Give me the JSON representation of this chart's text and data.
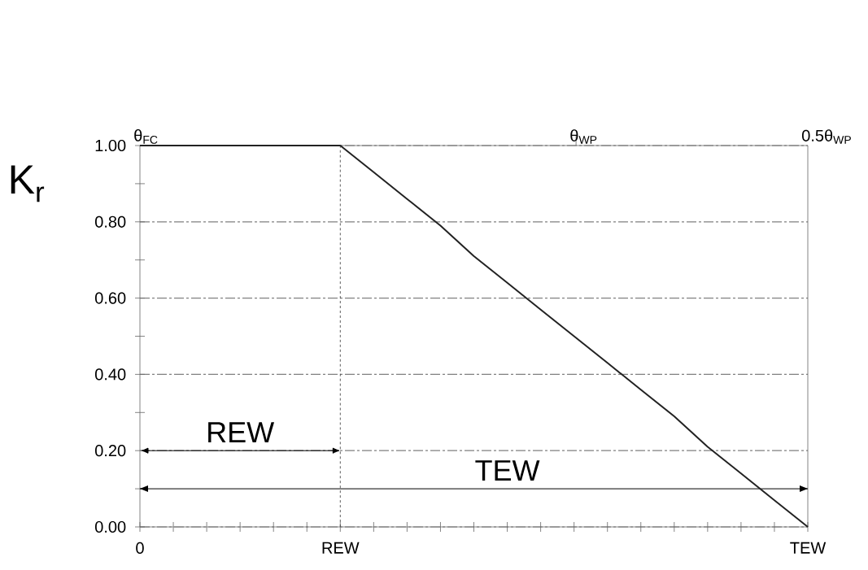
{
  "chart_data": {
    "type": "line",
    "ylabel": "K$_{r}$",
    "categories": [
      "0",
      null,
      null,
      null,
      null,
      null,
      "REW",
      null,
      null,
      null,
      null,
      null,
      null,
      null,
      null,
      null,
      null,
      null,
      null,
      null,
      "TEW"
    ],
    "series": [
      {
        "color": "#222222",
        "values": [
          1,
          1,
          1,
          1,
          1,
          1,
          1,
          0.93,
          0.86,
          0.79,
          0.71,
          0.64,
          0.57,
          0.5,
          0.43,
          0.36,
          0.29,
          0.21,
          0.14,
          0.07,
          0
        ]
      }
    ],
    "ylim": [
      0,
      1
    ],
    "yticks": [
      {
        "value": 0,
        "label": "0.00"
      },
      {
        "value": 0.1,
        "label": null
      },
      {
        "value": 0.2,
        "label": "0.20"
      },
      {
        "value": 0.3,
        "label": null
      },
      {
        "value": 0.4,
        "label": "0.40"
      },
      {
        "value": 0.5,
        "label": null
      },
      {
        "value": 0.6,
        "label": "0.60"
      },
      {
        "value": 0.7,
        "label": null
      },
      {
        "value": 0.8,
        "label": "0.80"
      },
      {
        "value": 0.9,
        "label": null
      },
      {
        "value": 1,
        "label": "1.00"
      }
    ],
    "ref_lines": [
      {
        "axis": "x",
        "value": "REW",
        "color": "#333333",
        "line_style": "dashed"
      },
      {
        "axis": "y",
        "value": 0.1,
        "label": "TEW",
        "color": "#000000",
        "line_style": "solid"
      }
    ],
    "annotations": [
      "θ$_{FC}$",
      "θ$_{WP}$",
      "0.5θ$_{WP}$",
      "REW"
    ],
    "grid": "y",
    "marker": "none",
    "line_style": "solid"
  }
}
